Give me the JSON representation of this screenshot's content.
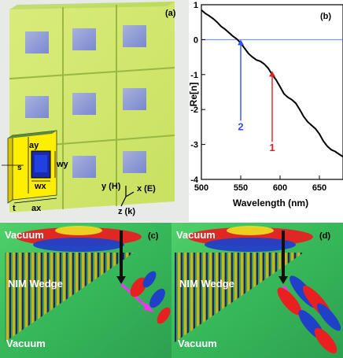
{
  "figure": {
    "panel_a": {
      "tag": "(a)",
      "labels": {
        "ay": "ay",
        "wy": "wy",
        "wx": "wx",
        "s": "s",
        "t": "t",
        "ax": "ax"
      },
      "axes": {
        "y": "y (H)",
        "x": "x (E)",
        "z": "z (k)"
      }
    },
    "panel_b": {
      "tag": "(b)"
    },
    "panel_c": {
      "tag": "(c)",
      "top_label": "Vacuum",
      "middle_label": "NIM Wedge",
      "bottom_label": "Vacuum"
    },
    "panel_d": {
      "tag": "(d)",
      "top_label": "Vacuum",
      "middle_label": "NIM Wedge",
      "bottom_label": "Vacuum"
    }
  },
  "chart_data": {
    "type": "line",
    "xlabel": "Wavelength (nm)",
    "ylabel": "Re[n]",
    "xlim": [
      500,
      680
    ],
    "ylim": [
      -4,
      1
    ],
    "xticks": [
      500,
      550,
      600,
      650
    ],
    "yticks": [
      1,
      0,
      -1,
      -2,
      -3,
      -4
    ],
    "grid": false,
    "reference_line_y": 0,
    "series": [
      {
        "x": [
          500,
          505,
          510,
          515,
          520,
          525,
          530,
          535,
          540,
          545,
          550,
          555,
          560,
          565,
          570,
          575,
          580,
          585,
          590,
          595,
          600,
          605,
          610,
          615,
          620,
          625,
          630,
          635,
          640,
          645,
          650,
          655,
          660,
          665,
          670,
          675,
          680
        ],
        "y": [
          0.85,
          0.75,
          0.68,
          0.6,
          0.5,
          0.38,
          0.3,
          0.2,
          0.1,
          0.02,
          -0.1,
          -0.25,
          -0.4,
          -0.5,
          -0.58,
          -0.62,
          -0.7,
          -0.82,
          -1.0,
          -1.15,
          -1.35,
          -1.55,
          -1.65,
          -1.72,
          -1.82,
          -2.0,
          -2.2,
          -2.35,
          -2.45,
          -2.55,
          -2.7,
          -2.9,
          -3.05,
          -3.15,
          -3.2,
          -3.28,
          -3.35
        ],
        "color": "#000000"
      }
    ],
    "annotations": [
      {
        "text": "2",
        "x": 550,
        "y": -2.5,
        "arrow_to_y": 0,
        "color": "#3050ff"
      },
      {
        "text": "1",
        "x": 590,
        "y": -3.1,
        "arrow_to_y": -0.9,
        "color": "#e02020"
      }
    ]
  }
}
